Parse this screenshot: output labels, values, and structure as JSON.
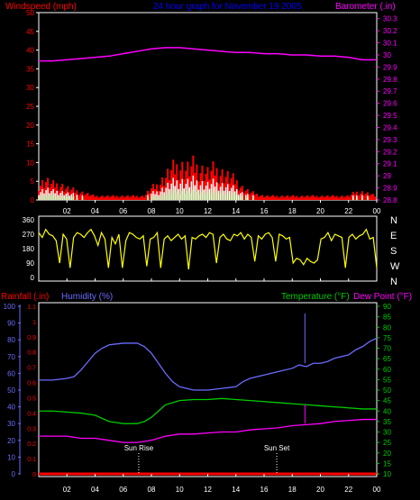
{
  "header": {
    "left_label": "Windspeed (mph)",
    "center_label": "24 hour graph for  November 19 2005",
    "right_label": "Barometer (.in)"
  },
  "colors": {
    "background": "#000000",
    "frame": "#ffffff",
    "wind": "#ff0000",
    "gust": "#ffffff",
    "wind_avg": "#80ff80",
    "barometer": "#ff00ff",
    "direction": "#ffff00",
    "rainfall": "#ff0000",
    "humidity": "#6b6bff",
    "temperature": "#00cc00",
    "dewpoint": "#ff00ff",
    "header_blue": "#0000ff"
  },
  "chart_data": [
    {
      "type": "line",
      "title": "24 hour graph for  November 19 2005",
      "x_ticks": [
        "02",
        "04",
        "06",
        "08",
        "10",
        "12",
        "14",
        "16",
        "18",
        "20",
        "22",
        "00"
      ],
      "xlim": [
        0,
        24
      ],
      "y_left": {
        "label": "Windspeed (mph)",
        "ticks": [
          0,
          5,
          10,
          15,
          20,
          25,
          30,
          35,
          40,
          45,
          50
        ],
        "lim": [
          0,
          50
        ]
      },
      "y_right": {
        "label": "Barometer (.in)",
        "ticks": [
          "28.8",
          "28.9",
          "29",
          "29.1",
          "29.2",
          "29.3",
          "29.4",
          "29.5",
          "29.6",
          "29.7",
          "29.8",
          "29.9",
          "30",
          "30.1",
          "30.2",
          "30.3"
        ],
        "lim": [
          28.8,
          30.35
        ]
      },
      "series": [
        {
          "name": "Windspeed (mph)",
          "x": [
            0,
            0.5,
            1,
            1.5,
            2,
            3,
            4,
            5,
            6,
            7,
            7.5,
            8,
            8.5,
            9,
            9.5,
            10,
            10.5,
            11,
            11.5,
            12,
            12.5,
            13,
            13.5,
            14,
            14.5,
            15,
            16,
            17,
            18,
            19,
            20,
            21,
            22,
            22.5,
            23,
            24
          ],
          "values": [
            4,
            5,
            4,
            4,
            3,
            2,
            1,
            1,
            1,
            1,
            1,
            3,
            4,
            6,
            8,
            9,
            8,
            9,
            8,
            7,
            8,
            7,
            6,
            5,
            3,
            2,
            1,
            1,
            1,
            1,
            1,
            1,
            1,
            2,
            2,
            1
          ]
        },
        {
          "name": "Barometer (.in)",
          "x": [
            0,
            1,
            2,
            3,
            4,
            5,
            6,
            7,
            8,
            9,
            10,
            11,
            12,
            13,
            14,
            15,
            16,
            17,
            18,
            19,
            20,
            21,
            22,
            23,
            24
          ],
          "values": [
            29.95,
            29.95,
            29.96,
            29.97,
            29.98,
            29.99,
            30.01,
            30.03,
            30.05,
            30.06,
            30.06,
            30.05,
            30.04,
            30.03,
            30.02,
            30.02,
            30.01,
            30.01,
            30.0,
            30.0,
            29.99,
            29.99,
            29.98,
            29.96,
            29.96
          ]
        }
      ]
    },
    {
      "type": "line",
      "x_ticks": [
        "02",
        "04",
        "06",
        "08",
        "10",
        "12",
        "14",
        "16",
        "18",
        "20",
        "22",
        "00"
      ],
      "xlim": [
        0,
        24
      ],
      "y_left": {
        "ticks": [
          0,
          90,
          180,
          270,
          360
        ],
        "lim": [
          0,
          360
        ]
      },
      "y_right": {
        "ticks": [
          "N",
          "W",
          "S",
          "E",
          "N"
        ]
      },
      "series": [
        {
          "values": [
            280,
            250,
            300,
            270,
            260,
            230,
            90,
            270,
            240,
            60,
            250,
            280,
            270,
            250,
            280,
            300,
            260,
            200,
            280,
            240,
            60,
            250,
            210,
            270,
            60,
            230,
            280,
            270,
            250,
            240,
            260,
            70,
            240,
            250,
            280,
            60,
            240,
            260,
            230,
            250,
            270,
            240,
            260,
            50,
            250,
            240,
            260,
            270,
            250,
            280,
            270,
            90,
            250,
            270,
            240,
            230,
            270,
            260,
            280,
            240,
            270,
            250,
            100,
            260,
            240,
            270,
            280,
            250,
            100,
            270,
            260,
            240,
            250,
            90,
            120,
            110,
            80,
            120,
            100,
            90,
            110,
            240,
            250,
            280,
            230,
            270,
            260,
            250,
            60,
            250,
            270,
            240,
            260,
            270,
            300,
            240,
            250,
            60
          ]
        }
      ]
    },
    {
      "type": "line",
      "x_ticks": [
        "02",
        "04",
        "06",
        "08",
        "10",
        "12",
        "14",
        "16",
        "18",
        "20",
        "22",
        "00"
      ],
      "xlim": [
        0,
        24
      ],
      "y_left_outer": {
        "label": "Rainfall (.in)",
        "ticks": [
          0,
          10,
          20,
          30,
          40,
          50,
          60,
          70,
          80,
          90,
          100
        ],
        "lim": [
          0,
          100
        ]
      },
      "y_left_inner": {
        "ticks": [
          "0",
          "0.1",
          "0.2",
          "0.3",
          "0.4",
          "0.5",
          "0.6",
          "0.7",
          "0.8",
          "0.9",
          "1",
          "1.1"
        ],
        "lim": [
          0,
          1.1
        ]
      },
      "y_right": {
        "ticks": [
          10,
          15,
          20,
          25,
          30,
          35,
          40,
          45,
          50,
          55,
          60,
          65,
          70,
          75,
          80,
          85,
          90
        ],
        "lim": [
          10,
          90
        ]
      },
      "labels": {
        "rainfall": "Rainfall (.in)",
        "humidity": "Humidity (%)",
        "temperature": "Temperature (°F)",
        "dewpoint": "Dew Point (°F)"
      },
      "annotations": [
        {
          "text": "Sun Rise",
          "x": 7.1
        },
        {
          "text": "Sun Set",
          "x": 16.9
        }
      ],
      "series": [
        {
          "name": "Rainfall (.in)",
          "axis": "rain",
          "x": [
            0,
            24
          ],
          "values": [
            0,
            0
          ]
        },
        {
          "name": "Humidity (%)",
          "axis": "humidity",
          "x": [
            0,
            1,
            2,
            2.5,
            3,
            3.5,
            4,
            4.5,
            5,
            6,
            7,
            7.5,
            8,
            8.5,
            9,
            9.5,
            10,
            10.5,
            11,
            12,
            13,
            14,
            14.5,
            15,
            16,
            17,
            18,
            18.5,
            19,
            19.5,
            20,
            20.5,
            21,
            22,
            22.5,
            23,
            23.5,
            24
          ],
          "values": [
            56,
            56,
            57,
            58,
            62,
            67,
            72,
            75,
            77,
            78,
            78,
            76,
            72,
            66,
            60,
            55,
            52,
            51,
            50,
            50,
            51,
            52,
            55,
            57,
            59,
            61,
            63,
            65,
            64,
            66,
            66,
            67,
            69,
            71,
            74,
            76,
            79,
            81
          ]
        },
        {
          "name": "Temperature (°F)",
          "axis": "temp",
          "x": [
            0,
            1,
            2,
            3,
            4,
            5,
            6,
            7,
            7.5,
            8,
            8.5,
            9,
            9.5,
            10,
            11,
            12,
            13,
            14,
            15,
            16,
            17,
            18,
            19,
            20,
            21,
            22,
            23,
            24
          ],
          "values": [
            40,
            40,
            39.5,
            39,
            38,
            35,
            34,
            34,
            35,
            37,
            40,
            43,
            44,
            45,
            45.5,
            45.5,
            46,
            45.5,
            45,
            44.5,
            44,
            43.5,
            43,
            42.5,
            42,
            41.5,
            41,
            41
          ]
        },
        {
          "name": "Dew Point (°F)",
          "axis": "temp",
          "x": [
            0,
            1,
            2,
            3,
            4,
            5,
            6,
            7,
            8,
            9,
            10,
            11,
            12,
            13,
            14,
            15,
            16,
            17,
            18,
            19,
            20,
            21,
            22,
            23,
            24
          ],
          "values": [
            28,
            28,
            28,
            27,
            27,
            26,
            25,
            25,
            26,
            28,
            29,
            29,
            29.5,
            30,
            30,
            31,
            31.5,
            32,
            33,
            33.5,
            34,
            35,
            35.5,
            36,
            36
          ]
        }
      ]
    }
  ]
}
